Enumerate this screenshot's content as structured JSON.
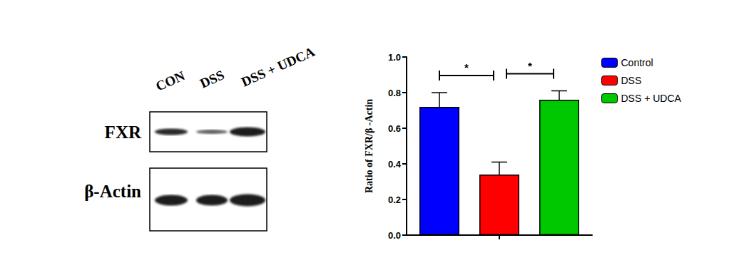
{
  "chart_data": {
    "type": "bar",
    "categories": [
      null
    ],
    "series": [
      {
        "name": "Control",
        "color": "#0000ff",
        "values": [
          0.72
        ],
        "errors": [
          0.08
        ]
      },
      {
        "name": "DSS",
        "color": "#ff0000",
        "values": [
          0.34
        ],
        "errors": [
          0.07
        ]
      },
      {
        "name": "DSS + UDCA",
        "color": "#00c800",
        "values": [
          0.76
        ],
        "errors": [
          0.05
        ]
      }
    ],
    "ylabel": "Ratio of FXR/β -Actin",
    "ylim": [
      0,
      1.0
    ],
    "yticks": [
      {
        "value": 0,
        "label": "0.0"
      },
      0.2,
      0.4,
      0.6,
      0.8,
      {
        "value": 1.0,
        "label": "1.0"
      }
    ],
    "grid": false,
    "legend": "right",
    "annotations": [
      {
        "text": "*",
        "from": "Control",
        "to": "DSS"
      },
      {
        "text": "*",
        "from": "DSS",
        "to": "DSS + UDCA"
      }
    ]
  },
  "blot": {
    "lanes": [
      "CON",
      "DSS",
      "DSS + UDCA"
    ],
    "rows": [
      {
        "label": "FXR"
      },
      {
        "label": "β-Actin"
      }
    ]
  }
}
